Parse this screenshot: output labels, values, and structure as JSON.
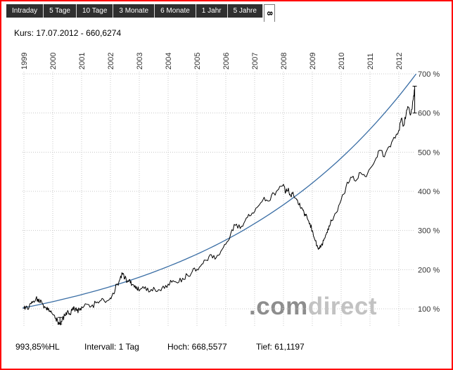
{
  "tabs": {
    "items": [
      {
        "label": "Intraday"
      },
      {
        "label": "5 Tage"
      },
      {
        "label": "10 Tage"
      },
      {
        "label": "3 Monate"
      },
      {
        "label": "6 Monate"
      },
      {
        "label": "1 Jahr"
      },
      {
        "label": "5 Jahre"
      }
    ],
    "active": {
      "label": "8"
    }
  },
  "quote_line": {
    "label": "Kurs: 17.07.2012 - 660,6274"
  },
  "watermark": {
    "com": ".com",
    "direct": "direct"
  },
  "footer": {
    "change": "993,85%HL",
    "interval": "Intervall: 1 Tag",
    "high": "Hoch: 668,5577",
    "low": "Tief: 61,1197"
  },
  "colors": {
    "frame_border": "#ff0000",
    "tab_bg": "#2f2f2f",
    "tab_text": "#ffffff",
    "grid": "#c8c8c8",
    "price_line": "#000000",
    "trend_line": "#3a6ea5",
    "watermark_dark": "#8d8d8d",
    "watermark_light": "#c2c2c2"
  },
  "chart_data": {
    "type": "line",
    "grid": true,
    "x_axis": {
      "position": "top",
      "rotation": -90,
      "tick_labels": [
        "1999",
        "2000",
        "2001",
        "2002",
        "2003",
        "2004",
        "2005",
        "2006",
        "2007",
        "2008",
        "2009",
        "2010",
        "2011",
        "2012"
      ],
      "range": [
        1998.95,
        2012.6
      ]
    },
    "y_axis": {
      "position": "right",
      "tick_labels": [
        "100 %",
        "200 %",
        "300 %",
        "400 %",
        "500 %",
        "600 %",
        "700 %"
      ],
      "unit": "%",
      "range": [
        50,
        715
      ]
    },
    "series": [
      {
        "name": "price",
        "color": "#000000",
        "points": [
          [
            1999.0,
            100
          ],
          [
            1999.08,
            107
          ],
          [
            1999.17,
            102
          ],
          [
            1999.25,
            113
          ],
          [
            1999.33,
            120
          ],
          [
            1999.42,
            127
          ],
          [
            1999.5,
            117
          ],
          [
            1999.58,
            123
          ],
          [
            1999.67,
            111
          ],
          [
            1999.75,
            104
          ],
          [
            1999.83,
            97
          ],
          [
            1999.92,
            92
          ],
          [
            2000.0,
            86
          ],
          [
            2000.08,
            76
          ],
          [
            2000.17,
            68
          ],
          [
            2000.25,
            61.12
          ],
          [
            2000.33,
            74
          ],
          [
            2000.42,
            83
          ],
          [
            2000.5,
            92
          ],
          [
            2000.58,
            88
          ],
          [
            2000.67,
            96
          ],
          [
            2000.75,
            101
          ],
          [
            2000.83,
            95
          ],
          [
            2000.92,
            100
          ],
          [
            2001.0,
            105
          ],
          [
            2001.17,
            112
          ],
          [
            2001.33,
            106
          ],
          [
            2001.5,
            115
          ],
          [
            2001.67,
            121
          ],
          [
            2001.83,
            116
          ],
          [
            2002.0,
            128
          ],
          [
            2002.08,
            140
          ],
          [
            2002.17,
            152
          ],
          [
            2002.25,
            163
          ],
          [
            2002.33,
            175
          ],
          [
            2002.42,
            188
          ],
          [
            2002.5,
            178
          ],
          [
            2002.58,
            168
          ],
          [
            2002.67,
            175
          ],
          [
            2002.75,
            162
          ],
          [
            2002.83,
            155
          ],
          [
            2002.92,
            150
          ],
          [
            2003.0,
            146
          ],
          [
            2003.17,
            152
          ],
          [
            2003.33,
            143
          ],
          [
            2003.5,
            155
          ],
          [
            2003.67,
            149
          ],
          [
            2003.83,
            158
          ],
          [
            2004.0,
            163
          ],
          [
            2004.17,
            172
          ],
          [
            2004.33,
            166
          ],
          [
            2004.5,
            178
          ],
          [
            2004.67,
            186
          ],
          [
            2004.83,
            194
          ],
          [
            2005.0,
            201
          ],
          [
            2005.17,
            214
          ],
          [
            2005.33,
            224
          ],
          [
            2005.5,
            238
          ],
          [
            2005.67,
            231
          ],
          [
            2005.83,
            247
          ],
          [
            2006.0,
            265
          ],
          [
            2006.17,
            292
          ],
          [
            2006.33,
            313
          ],
          [
            2006.5,
            305
          ],
          [
            2006.67,
            325
          ],
          [
            2006.83,
            337
          ],
          [
            2007.0,
            348
          ],
          [
            2007.17,
            366
          ],
          [
            2007.33,
            385
          ],
          [
            2007.5,
            375
          ],
          [
            2007.67,
            395
          ],
          [
            2007.83,
            405
          ],
          [
            2008.0,
            418
          ],
          [
            2008.08,
            398
          ],
          [
            2008.17,
            408
          ],
          [
            2008.25,
            388
          ],
          [
            2008.33,
            398
          ],
          [
            2008.42,
            382
          ],
          [
            2008.5,
            372
          ],
          [
            2008.58,
            360
          ],
          [
            2008.67,
            352
          ],
          [
            2008.75,
            342
          ],
          [
            2008.83,
            330
          ],
          [
            2008.92,
            318
          ],
          [
            2009.0,
            300
          ],
          [
            2009.08,
            278
          ],
          [
            2009.17,
            262
          ],
          [
            2009.25,
            254
          ],
          [
            2009.33,
            266
          ],
          [
            2009.42,
            280
          ],
          [
            2009.5,
            295
          ],
          [
            2009.58,
            312
          ],
          [
            2009.67,
            325
          ],
          [
            2009.83,
            345
          ],
          [
            2010.0,
            378
          ],
          [
            2010.17,
            412
          ],
          [
            2010.33,
            436
          ],
          [
            2010.5,
            426
          ],
          [
            2010.67,
            448
          ],
          [
            2010.83,
            438
          ],
          [
            2011.0,
            458
          ],
          [
            2011.17,
            478
          ],
          [
            2011.33,
            505
          ],
          [
            2011.5,
            488
          ],
          [
            2011.67,
            515
          ],
          [
            2011.83,
            538
          ],
          [
            2012.0,
            556
          ],
          [
            2012.08,
            585
          ],
          [
            2012.17,
            568
          ],
          [
            2012.25,
            596
          ],
          [
            2012.33,
            615
          ],
          [
            2012.42,
            598
          ],
          [
            2012.5,
            635
          ],
          [
            2012.55,
            660.6274
          ]
        ]
      },
      {
        "name": "trend",
        "color": "#3a6ea5",
        "model": "exponential",
        "x_start": 1998.95,
        "p_start": 102,
        "x_end": 2012.6,
        "p_end": 700
      }
    ],
    "markers": {
      "low": {
        "x": 2000.25,
        "from": 61.1197,
        "to": 78
      },
      "end": {
        "x": 2012.55,
        "from": 600,
        "to": 668.5577
      }
    },
    "stats": {
      "last": 660.6274,
      "high": 668.5577,
      "low": 61.1197,
      "change_pct": "993,85%",
      "interval": "1 Tag"
    }
  }
}
